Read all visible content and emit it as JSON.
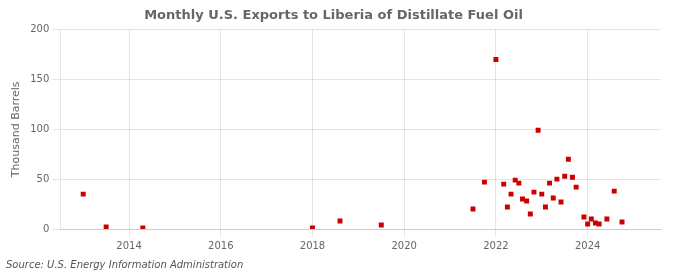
{
  "chart_data": {
    "type": "scatter",
    "title": "Monthly U.S. Exports to Liberia of Distillate Fuel Oil",
    "ylabel": "Thousand Barrels",
    "annotations": [
      "Source: U.S. Energy Information Administration"
    ],
    "color": "#cc0000",
    "marker": "square",
    "xlim": [
      2012.5,
      2025.6
    ],
    "xticks": [
      2014,
      2016,
      2018,
      2020,
      2022,
      2024
    ],
    "ylim": [
      0,
      200
    ],
    "yticks": [
      0,
      50,
      100,
      150,
      200
    ],
    "grid": true,
    "x": [
      2013.0,
      2013.5,
      2014.3,
      2018.0,
      2018.6,
      2019.5,
      2021.5,
      2021.75,
      2022.0,
      2022.17,
      2022.25,
      2022.33,
      2022.42,
      2022.5,
      2022.58,
      2022.67,
      2022.75,
      2022.83,
      2022.92,
      2023.0,
      2023.08,
      2023.17,
      2023.25,
      2023.33,
      2023.42,
      2023.5,
      2023.58,
      2023.67,
      2023.75,
      2023.92,
      2024.0,
      2024.08,
      2024.17,
      2024.25,
      2024.42,
      2024.58,
      2024.75
    ],
    "values": [
      35,
      2,
      1,
      1,
      8,
      4,
      20,
      47,
      170,
      45,
      22,
      35,
      49,
      46,
      30,
      28,
      15,
      37,
      99,
      35,
      22,
      46,
      31,
      50,
      27,
      53,
      70,
      52,
      42,
      12,
      5,
      10,
      6,
      5,
      10,
      38,
      7
    ]
  }
}
